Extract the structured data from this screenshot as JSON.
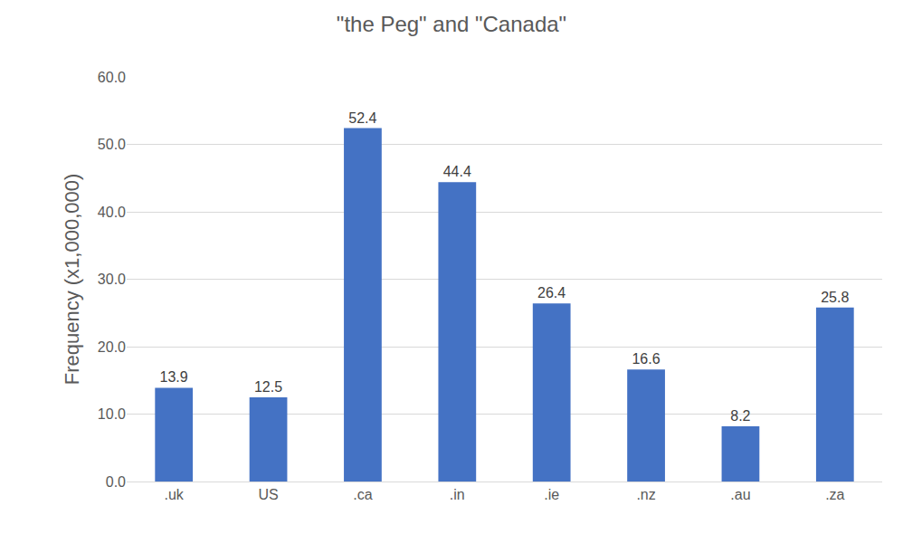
{
  "chart_data": {
    "type": "bar",
    "title": "\"the Peg\" and \"Canada\"",
    "y_label": "Frequency (x1,000,000)",
    "categories": [
      ".uk",
      "US",
      ".ca",
      ".in",
      ".ie",
      ".nz",
      ".au",
      ".za"
    ],
    "values": [
      13.9,
      12.5,
      52.4,
      44.4,
      26.4,
      16.6,
      8.2,
      25.8
    ],
    "color": "#4472c4",
    "ylim": [
      0,
      60
    ],
    "yticks": [
      {
        "value": 0,
        "label": "0.0"
      },
      {
        "value": 10,
        "label": "10.0"
      },
      {
        "value": 20,
        "label": "20.0"
      },
      {
        "value": 30,
        "label": "30.0"
      },
      {
        "value": 40,
        "label": "40.0"
      },
      {
        "value": 50,
        "label": "50.0"
      },
      {
        "value": 60,
        "label": "60.0"
      }
    ],
    "grid": true,
    "data_labels": true
  }
}
